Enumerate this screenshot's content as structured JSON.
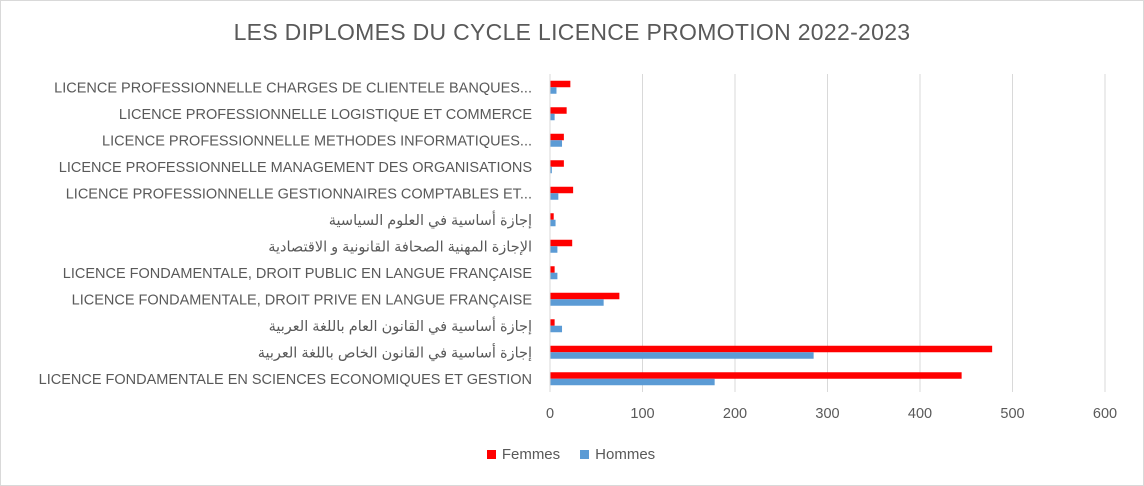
{
  "chart_data": {
    "type": "bar",
    "orientation": "horizontal",
    "title": "LES DIPLOMES DU CYCLE LICENCE PROMOTION 2022-2023",
    "categories": [
      "LICENCE PROFESSIONNELLE CHARGES DE CLIENTELE BANQUES...",
      "LICENCE PROFESSIONNELLE LOGISTIQUE ET COMMERCE",
      "LICENCE PROFESSIONNELLE METHODES INFORMATIQUES...",
      "LICENCE PROFESSIONNELLE MANAGEMENT DES ORGANISATIONS",
      "LICENCE PROFESSIONNELLE GESTIONNAIRES COMPTABLES ET...",
      "إجازة أساسية في العلوم السياسية",
      "الإجازة المهنية الصحافة القانونية و الاقتصادية",
      "LICENCE FONDAMENTALE, DROIT PUBLIC EN LANGUE FRANÇAISE",
      "LICENCE FONDAMENTALE, DROIT PRIVE EN LANGUE FRANÇAISE",
      "إجازة أساسية في القانون العام باللغة العربية",
      "إجازة أساسية في القانون الخاص باللغة العربية",
      "LICENCE FONDAMENTALE EN SCIENCES ECONOMIQUES ET GESTION"
    ],
    "series": [
      {
        "name": "Femmes",
        "color": "#ff0000",
        "values": [
          22,
          18,
          15,
          15,
          25,
          4,
          24,
          5,
          75,
          5,
          478,
          445
        ]
      },
      {
        "name": "Hommes",
        "color": "#5b9bd5",
        "values": [
          7,
          5,
          13,
          2,
          9,
          6,
          8,
          8,
          58,
          13,
          285,
          178
        ]
      }
    ],
    "xlim": [
      0,
      600
    ],
    "xticks": [
      0,
      100,
      200,
      300,
      400,
      500,
      600
    ],
    "grid": true,
    "legend_position": "bottom"
  }
}
